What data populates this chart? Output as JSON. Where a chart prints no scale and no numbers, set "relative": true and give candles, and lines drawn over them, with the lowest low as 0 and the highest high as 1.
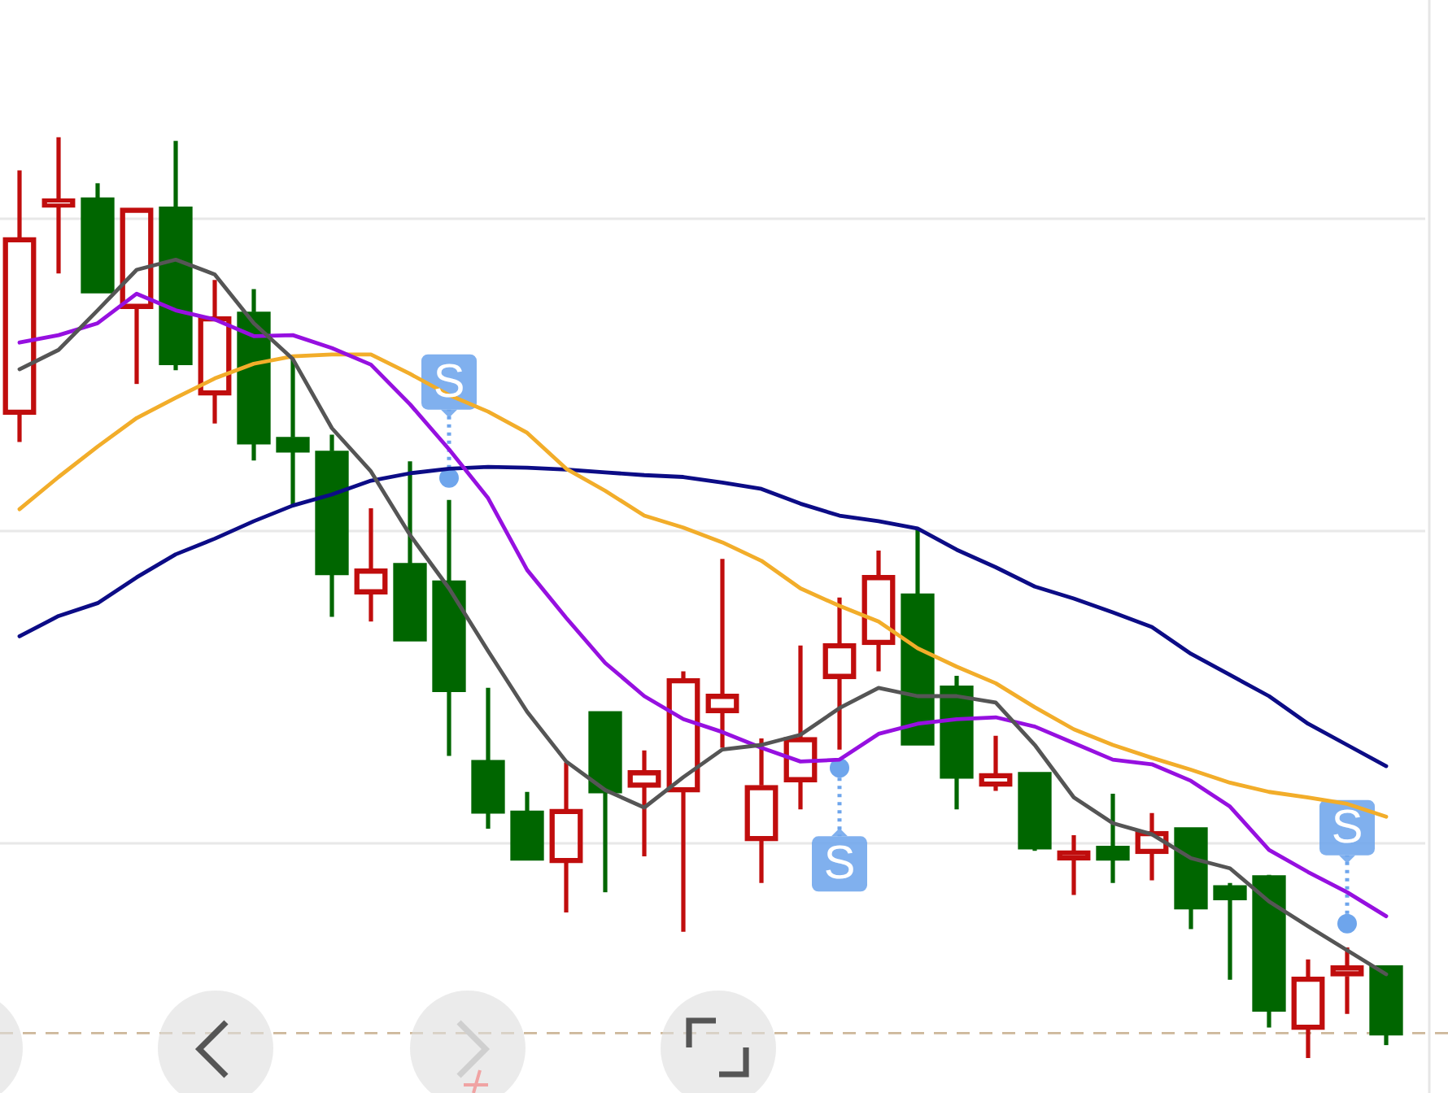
{
  "chart_data": {
    "type": "candlestick",
    "relative": true,
    "grid": "y",
    "categories": [
      null,
      null,
      null,
      null,
      null,
      null,
      null,
      null,
      null,
      null,
      null,
      null,
      null,
      null,
      null,
      null,
      null,
      null,
      null,
      null,
      null,
      null,
      null,
      null,
      null,
      null,
      null,
      null,
      null,
      null,
      null,
      null,
      null,
      null,
      null,
      null
    ],
    "ohlc": [
      [
        0.699,
        0.964,
        0.669,
        0.891
      ],
      [
        0.924,
        1,
        0.852,
        0.933
      ],
      [
        0.934,
        0.95,
        0.831,
        0.831
      ],
      [
        0.814,
        0.923,
        0.732,
        0.923
      ],
      [
        0.924,
        0.996,
        0.747,
        0.753
      ],
      [
        0.72,
        0.845,
        0.689,
        0.805
      ],
      [
        0.81,
        0.835,
        0.649,
        0.667
      ],
      [
        0.674,
        0.759,
        0.601,
        0.658
      ],
      [
        0.659,
        0.677,
        0.479,
        0.525
      ],
      [
        0.504,
        0.597,
        0.474,
        0.531
      ],
      [
        0.537,
        0.648,
        0.453,
        0.453
      ],
      [
        0.518,
        0.606,
        0.328,
        0.398
      ],
      [
        0.323,
        0.402,
        0.249,
        0.266
      ],
      [
        0.268,
        0.289,
        0.215,
        0.215
      ],
      [
        0.212,
        0.321,
        0.158,
        0.27
      ],
      [
        0.376,
        0.376,
        0.18,
        0.288
      ],
      [
        0.294,
        0.334,
        0.219,
        0.312
      ],
      [
        0.289,
        0.42,
        0.137,
        0.412
      ],
      [
        0.375,
        0.542,
        0.337,
        0.395
      ],
      [
        0.236,
        0.347,
        0.19,
        0.296
      ],
      [
        0.3,
        0.448,
        0.27,
        0.348
      ],
      [
        0.412,
        0.5,
        0.335,
        0.45
      ],
      [
        0.449,
        0.551,
        0.42,
        0.524
      ],
      [
        0.504,
        0.575,
        0.34,
        0.34
      ],
      [
        0.404,
        0.415,
        0.27,
        0.304
      ],
      [
        0.295,
        0.35,
        0.29,
        0.309
      ],
      [
        0.31,
        0.31,
        0.225,
        0.227
      ],
      [
        0.215,
        0.242,
        0.177,
        0.225
      ],
      [
        0.23,
        0.287,
        0.19,
        0.215
      ],
      [
        0.222,
        0.266,
        0.193,
        0.246
      ],
      [
        0.25,
        0.25,
        0.14,
        0.162
      ],
      [
        0.187,
        0.19,
        0.085,
        0.172
      ],
      [
        0.198,
        0.199,
        0.033,
        0.051
      ],
      [
        0.031,
        0.107,
        0,
        0.088
      ],
      [
        0.089,
        0.12,
        0.048,
        0.1
      ],
      [
        0.1,
        0.1,
        0.014,
        0.025
      ]
    ],
    "colors": [
      "#c00d0d",
      "#c00d0d",
      "#006600",
      "#c00d0d",
      "#006600",
      "#c00d0d",
      "#006600",
      "#006600",
      "#006600",
      "#c00d0d",
      "#006600",
      "#006600",
      "#006600",
      "#006600",
      "#c00d0d",
      "#006600",
      "#c00d0d",
      "#c00d0d",
      "#c00d0d",
      "#c00d0d",
      "#c00d0d",
      "#c00d0d",
      "#c00d0d",
      "#006600",
      "#006600",
      "#c00d0d",
      "#006600",
      "#c00d0d",
      "#006600",
      "#c00d0d",
      "#006600",
      "#006600",
      "#006600",
      "#c00d0d",
      "#c00d0d",
      "#006600"
    ],
    "series": [
      {
        "type": "line",
        "color": "#555555",
        "values": [
          0.748,
          0.769,
          0.812,
          0.856,
          0.867,
          0.851,
          0.798,
          0.759,
          0.684,
          0.637,
          0.568,
          0.51,
          0.442,
          0.376,
          0.322,
          0.291,
          0.272,
          0.305,
          0.335,
          0.34,
          0.351,
          0.38,
          0.402,
          0.393,
          0.393,
          0.386,
          0.34,
          0.283,
          0.255,
          0.243,
          0.217,
          0.206,
          0.17,
          0.143,
          0.117,
          0.091
        ]
      },
      {
        "type": "line",
        "color": "#9610e0",
        "values": [
          0.777,
          0.785,
          0.798,
          0.83,
          0.812,
          0.802,
          0.784,
          0.785,
          0.771,
          0.753,
          0.71,
          0.661,
          0.608,
          0.53,
          0.478,
          0.429,
          0.393,
          0.368,
          0.354,
          0.337,
          0.322,
          0.324,
          0.352,
          0.363,
          0.368,
          0.37,
          0.36,
          0.342,
          0.324,
          0.319,
          0.301,
          0.273,
          0.226,
          0.202,
          0.18,
          0.154
        ]
      },
      {
        "type": "line",
        "color": "#f2ad2a",
        "values": [
          0.596,
          0.631,
          0.664,
          0.695,
          0.717,
          0.738,
          0.754,
          0.762,
          0.764,
          0.764,
          0.743,
          0.72,
          0.702,
          0.679,
          0.64,
          0.616,
          0.589,
          0.576,
          0.56,
          0.54,
          0.51,
          0.491,
          0.474,
          0.445,
          0.425,
          0.407,
          0.381,
          0.357,
          0.34,
          0.326,
          0.313,
          0.299,
          0.289,
          0.283,
          0.276,
          0.262
        ]
      },
      {
        "type": "line",
        "color": "#0c0c86",
        "values": [
          0.458,
          0.48,
          0.494,
          0.522,
          0.547,
          0.564,
          0.583,
          0.6,
          0.612,
          0.627,
          0.635,
          0.64,
          0.642,
          0.641,
          0.639,
          0.636,
          0.633,
          0.631,
          0.625,
          0.618,
          0.602,
          0.589,
          0.583,
          0.575,
          0.552,
          0.533,
          0.512,
          0.499,
          0.484,
          0.468,
          0.439,
          0.416,
          0.393,
          0.363,
          0.34,
          0.317
        ]
      },
      {
        "type": "scatter",
        "color": "#6ea5ec",
        "marker": "circle",
        "values": [
          null,
          null,
          null,
          null,
          null,
          null,
          null,
          null,
          null,
          null,
          null,
          0.63,
          null,
          null,
          null,
          null,
          null,
          null,
          null,
          null,
          null,
          0.315,
          null,
          null,
          null,
          null,
          null,
          null,
          null,
          null,
          null,
          null,
          null,
          null,
          0.146,
          null
        ]
      }
    ],
    "annotations": [
      {
        "text": "S",
        "y": 0.63
      },
      {
        "text": "S",
        "y": 0.315
      },
      {
        "text": "S",
        "y": 0.146
      }
    ],
    "ref_lines": [
      {
        "axis": "y",
        "value": 0.027,
        "color": "#cdb89a",
        "line_style": "dashed"
      }
    ]
  }
}
